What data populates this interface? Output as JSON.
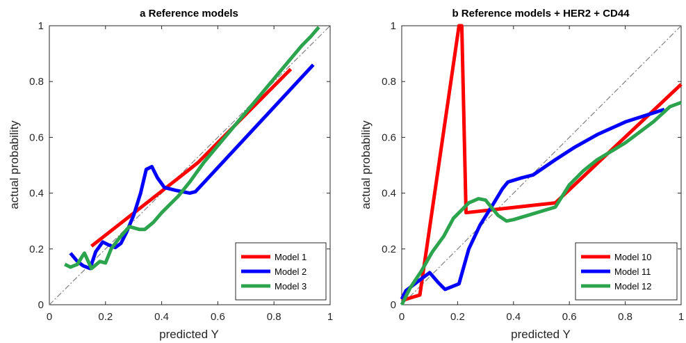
{
  "chart_data": [
    {
      "type": "line",
      "title": "a  Reference models",
      "xlabel": "predicted Y",
      "ylabel": "actual probability",
      "xlim": [
        0,
        1
      ],
      "ylim": [
        0,
        1
      ],
      "xticks": [
        "0",
        "0.2",
        "0.4",
        "0.6",
        "0.8",
        "1"
      ],
      "yticks": [
        "0",
        "0.2",
        "0.4",
        "0.6",
        "0.8",
        "1"
      ],
      "legend_position": "bottom-right",
      "reference_line": "diagonal dash-dot",
      "series": [
        {
          "name": "Model 1",
          "color": "#ff0000",
          "x": [
            0.15,
            0.48,
            0.53,
            0.86
          ],
          "y": [
            0.21,
            0.47,
            0.51,
            0.845
          ]
        },
        {
          "name": "Model 2",
          "color": "#0000ff",
          "x": [
            0.075,
            0.1,
            0.12,
            0.145,
            0.165,
            0.19,
            0.21,
            0.235,
            0.255,
            0.275,
            0.3,
            0.325,
            0.345,
            0.365,
            0.385,
            0.41,
            0.45,
            0.5,
            0.52,
            0.94
          ],
          "y": [
            0.185,
            0.155,
            0.14,
            0.13,
            0.19,
            0.225,
            0.215,
            0.205,
            0.22,
            0.26,
            0.32,
            0.4,
            0.485,
            0.495,
            0.455,
            0.42,
            0.41,
            0.4,
            0.405,
            0.86
          ]
        },
        {
          "name": "Model 3",
          "color": "#2ca44d",
          "x": [
            0.055,
            0.075,
            0.1,
            0.115,
            0.125,
            0.15,
            0.18,
            0.2,
            0.22,
            0.25,
            0.285,
            0.32,
            0.34,
            0.37,
            0.4,
            0.43,
            0.46,
            0.5,
            0.55,
            0.6,
            0.65,
            0.7,
            0.75,
            0.8,
            0.85,
            0.9,
            0.93,
            0.96
          ],
          "y": [
            0.145,
            0.135,
            0.145,
            0.17,
            0.185,
            0.13,
            0.155,
            0.15,
            0.2,
            0.24,
            0.28,
            0.27,
            0.27,
            0.295,
            0.33,
            0.36,
            0.39,
            0.44,
            0.51,
            0.57,
            0.63,
            0.69,
            0.75,
            0.81,
            0.87,
            0.93,
            0.96,
            0.995
          ]
        }
      ]
    },
    {
      "type": "line",
      "title": "b  Reference models + HER2 + CD44",
      "xlabel": "predicted Y",
      "ylabel": "actual probability",
      "xlim": [
        0,
        1
      ],
      "ylim": [
        0,
        1
      ],
      "xticks": [
        "0",
        "0.2",
        "0.4",
        "0.6",
        "0.8",
        "1"
      ],
      "yticks": [
        "0",
        "0.2",
        "0.4",
        "0.6",
        "0.8",
        "1"
      ],
      "legend_position": "bottom-right",
      "reference_line": "diagonal dash-dot",
      "series": [
        {
          "name": "Model 10",
          "color": "#ff0000",
          "x": [
            0.0,
            0.065,
            0.205,
            0.215,
            0.23,
            0.55,
            1.0
          ],
          "y": [
            0.015,
            0.035,
            1.0,
            1.0,
            0.33,
            0.365,
            0.79
          ]
        },
        {
          "name": "Model 11",
          "color": "#0000ff",
          "x": [
            0.0,
            0.015,
            0.06,
            0.1,
            0.13,
            0.155,
            0.18,
            0.205,
            0.24,
            0.28,
            0.33,
            0.36,
            0.38,
            0.43,
            0.47,
            0.55,
            0.62,
            0.7,
            0.8,
            0.94
          ],
          "y": [
            0.02,
            0.05,
            0.085,
            0.115,
            0.08,
            0.055,
            0.065,
            0.075,
            0.2,
            0.285,
            0.365,
            0.415,
            0.44,
            0.455,
            0.465,
            0.52,
            0.565,
            0.61,
            0.655,
            0.7
          ]
        },
        {
          "name": "Model 12",
          "color": "#2ca44d",
          "x": [
            0.0,
            0.03,
            0.07,
            0.11,
            0.15,
            0.185,
            0.24,
            0.275,
            0.3,
            0.32,
            0.345,
            0.375,
            0.4,
            0.45,
            0.55,
            0.6,
            0.65,
            0.7,
            0.8,
            0.9,
            0.96,
            1.0
          ],
          "y": [
            0.0,
            0.06,
            0.12,
            0.19,
            0.245,
            0.31,
            0.365,
            0.38,
            0.375,
            0.35,
            0.32,
            0.3,
            0.305,
            0.32,
            0.35,
            0.43,
            0.48,
            0.52,
            0.58,
            0.655,
            0.71,
            0.725
          ]
        }
      ]
    }
  ]
}
